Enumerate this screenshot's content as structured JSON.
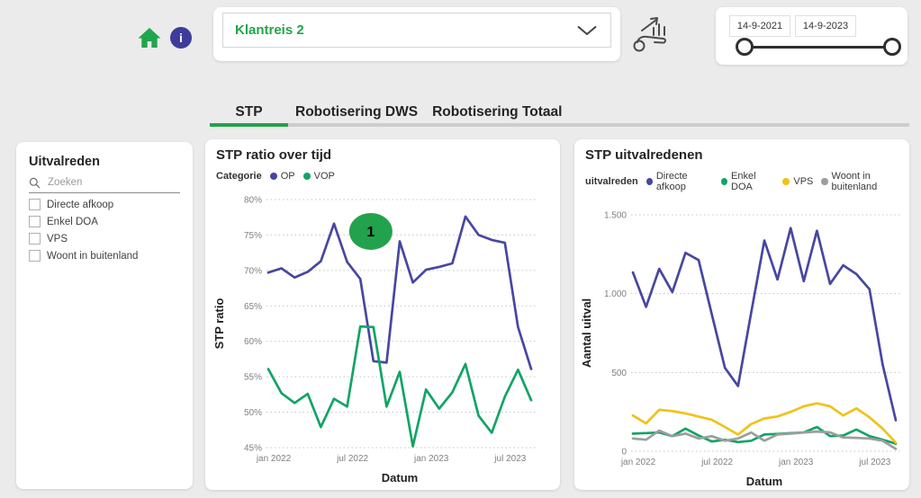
{
  "topbar": {
    "report_selector": {
      "value": "Klantreis 2"
    },
    "date_slider": {
      "start_date": "14-9-2021",
      "end_date": "14-9-2023"
    }
  },
  "tabs": [
    {
      "label": "STP",
      "active": true
    },
    {
      "label": "Robotisering DWS",
      "active": false
    },
    {
      "label": "Robotisering Totaal",
      "active": false
    }
  ],
  "filter_panel": {
    "title": "Uitvalreden",
    "search_placeholder": "Zoeken",
    "options": [
      {
        "label": "Directe afkoop",
        "checked": false
      },
      {
        "label": "Enkel DOA",
        "checked": false
      },
      {
        "label": "VPS",
        "checked": false
      },
      {
        "label": "Woont in buitenland",
        "checked": false
      }
    ]
  },
  "colors": {
    "accent_green": "#21a64b",
    "indigo": "#4747a1",
    "emerald": "#12a466",
    "yellow": "#f0c219",
    "gray": "#9d9d9d",
    "info_badge": "#3d3d99"
  },
  "chart_data": [
    {
      "type": "line",
      "title": "STP ratio over tijd",
      "legend_title": "Categorie",
      "legend_position": "top",
      "xlabel": "Datum",
      "ylabel": "STP ratio",
      "ylim": [
        45,
        80
      ],
      "grid": "dotted",
      "yticks": [
        {
          "v": 45,
          "label": "45%"
        },
        {
          "v": 50,
          "label": "50%"
        },
        {
          "v": 55,
          "label": "55%"
        },
        {
          "v": 60,
          "label": "60%"
        },
        {
          "v": 65,
          "label": "65%"
        },
        {
          "v": 70,
          "label": "70%"
        },
        {
          "v": 75,
          "label": "75%"
        },
        {
          "v": 80,
          "label": "80%"
        }
      ],
      "categories": [
        "jan 2022",
        "feb 2022",
        "mrt 2022",
        "apr 2022",
        "mei 2022",
        "jun 2022",
        "jul 2022",
        "aug 2022",
        "sep 2022",
        "okt 2022",
        "nov 2022",
        "dec 2022",
        "jan 2023",
        "feb 2023",
        "mrt 2023",
        "apr 2023",
        "mei 2023",
        "jun 2023",
        "jul 2023",
        "aug 2023",
        "sep 2023"
      ],
      "xticks": [
        {
          "i": 0,
          "label": "jan 2022"
        },
        {
          "i": 6,
          "label": "jul 2022"
        },
        {
          "i": 12,
          "label": "jan 2023"
        },
        {
          "i": 18,
          "label": "jul 2023"
        }
      ],
      "series": [
        {
          "name": "OP",
          "color": "#4747a1",
          "values": [
            69.7,
            70.3,
            69.0,
            69.8,
            71.3,
            76.6,
            71.2,
            68.8,
            57.2,
            57.0,
            74.1,
            68.3,
            70.1,
            70.5,
            71.0,
            77.6,
            75.0,
            74.3,
            73.9,
            62.0,
            56.1
          ]
        },
        {
          "name": "VOP",
          "color": "#12a466",
          "values": [
            56.1,
            52.7,
            51.3,
            52.6,
            47.9,
            51.9,
            50.8,
            62.1,
            62.0,
            50.8,
            55.7,
            45.2,
            53.2,
            50.5,
            52.8,
            56.8,
            49.5,
            47.1,
            52.2,
            56.0,
            51.7
          ]
        }
      ],
      "annotation": {
        "label": "1",
        "x_index": 7.8,
        "value": 75.5,
        "color": "#22a24c"
      }
    },
    {
      "type": "line",
      "title": "STP uitvalredenen",
      "legend_title": "uitvalreden",
      "legend_position": "top",
      "xlabel": "Datum",
      "ylabel": "Aantal uitval",
      "ylim": [
        0,
        1500
      ],
      "grid": "dotted",
      "yticks": [
        {
          "v": 0,
          "label": "0"
        },
        {
          "v": 500,
          "label": "500"
        },
        {
          "v": 1000,
          "label": "1.000"
        },
        {
          "v": 1500,
          "label": "1.500"
        }
      ],
      "categories": [
        "jan 2022",
        "feb 2022",
        "mrt 2022",
        "apr 2022",
        "mei 2022",
        "jun 2022",
        "jul 2022",
        "aug 2022",
        "sep 2022",
        "okt 2022",
        "nov 2022",
        "dec 2022",
        "jan 2023",
        "feb 2023",
        "mrt 2023",
        "apr 2023",
        "mei 2023",
        "jun 2023",
        "jul 2023",
        "aug 2023",
        "sep 2023"
      ],
      "xticks": [
        {
          "i": 0,
          "label": "jan 2022"
        },
        {
          "i": 6,
          "label": "jul 2022"
        },
        {
          "i": 12,
          "label": "jan 2023"
        },
        {
          "i": 18,
          "label": "jul 2023"
        }
      ],
      "series": [
        {
          "name": "Directe afkoop",
          "color": "#4747a1",
          "values": [
            1135,
            916,
            1157,
            1010,
            1259,
            1213,
            870,
            529,
            414,
            880,
            1337,
            1090,
            1416,
            1079,
            1399,
            1062,
            1180,
            1124,
            1028,
            550,
            197
          ]
        },
        {
          "name": "Enkel DOA",
          "color": "#12a466",
          "values": [
            112,
            115,
            119,
            96,
            144,
            100,
            62,
            73,
            58,
            67,
            106,
            110,
            115,
            119,
            154,
            96,
            100,
            138,
            96,
            73,
            48
          ]
        },
        {
          "name": "VPS",
          "color": "#f0c219",
          "values": [
            227,
            177,
            263,
            255,
            240,
            220,
            200,
            154,
            106,
            173,
            208,
            221,
            250,
            285,
            304,
            285,
            227,
            272,
            215,
            144,
            54
          ]
        },
        {
          "name": "Woont in buitenland",
          "color": "#9d9d9d",
          "values": [
            81,
            73,
            131,
            96,
            112,
            81,
            96,
            67,
            81,
            119,
            67,
            106,
            112,
            119,
            125,
            120,
            87,
            85,
            81,
            67,
            15
          ]
        }
      ]
    }
  ]
}
